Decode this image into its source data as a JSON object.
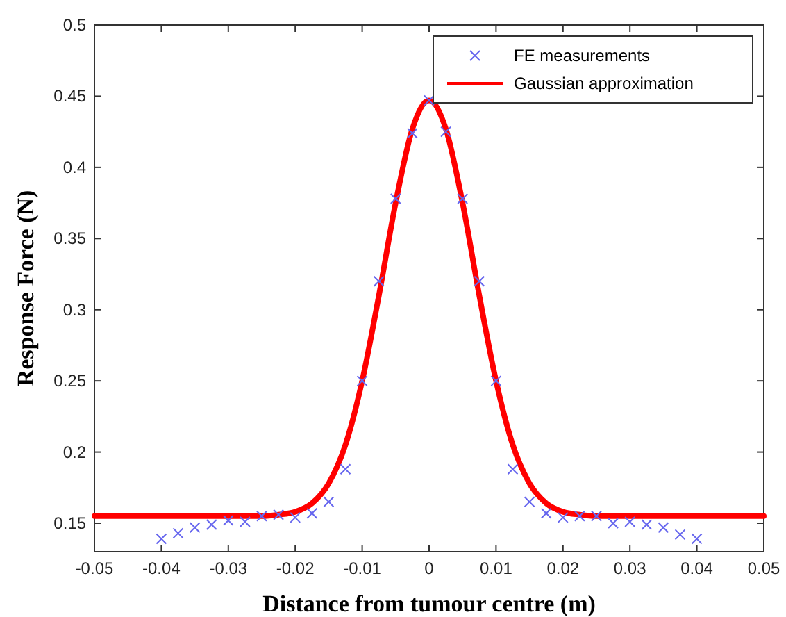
{
  "chart_data": {
    "type": "scatter",
    "xlabel": "Distance from tumour centre (m)",
    "ylabel": "Response Force (N)",
    "xlim": [
      -0.05,
      0.05
    ],
    "ylim": [
      0.13,
      0.5
    ],
    "xticks": [
      -0.05,
      -0.04,
      -0.03,
      -0.02,
      -0.01,
      0,
      0.01,
      0.02,
      0.03,
      0.04,
      0.05
    ],
    "yticks": [
      0.15,
      0.2,
      0.25,
      0.3,
      0.35,
      0.4,
      0.45,
      0.5
    ],
    "grid": false,
    "legend": "top right",
    "series": [
      {
        "name": "FE measurements",
        "marker": "cross",
        "color": "#6666ee",
        "x": [
          -0.04,
          -0.0375,
          -0.035,
          -0.0325,
          -0.03,
          -0.0275,
          -0.025,
          -0.0225,
          -0.02,
          -0.0175,
          -0.015,
          -0.0125,
          -0.01,
          -0.0075,
          -0.005,
          -0.0025,
          0,
          0.0025,
          0.005,
          0.0075,
          0.01,
          0.0125,
          0.015,
          0.0175,
          0.02,
          0.0225,
          0.025,
          0.0275,
          0.03,
          0.0325,
          0.035,
          0.0375,
          0.04
        ],
        "values": [
          0.139,
          0.143,
          0.147,
          0.149,
          0.152,
          0.151,
          0.155,
          0.156,
          0.154,
          0.157,
          0.165,
          0.188,
          0.25,
          0.32,
          0.378,
          0.424,
          0.447,
          0.425,
          0.378,
          0.32,
          0.25,
          0.188,
          0.165,
          0.157,
          0.154,
          0.155,
          0.155,
          0.15,
          0.151,
          0.149,
          0.147,
          0.142,
          0.139
        ]
      },
      {
        "name": "Gaussian approximation",
        "type": "line",
        "marker": "none",
        "line_style": "solid",
        "color": "#ff0000",
        "x": [
          -0.05,
          -0.025,
          -0.0225,
          -0.02,
          -0.0175,
          -0.015,
          -0.0125,
          -0.01,
          -0.0075,
          -0.005,
          -0.0025,
          0,
          0.0025,
          0.005,
          0.0075,
          0.01,
          0.0125,
          0.015,
          0.0175,
          0.02,
          0.0225,
          0.025,
          0.05
        ],
        "values": [
          0.155,
          0.155,
          0.156,
          0.158,
          0.164,
          0.178,
          0.205,
          0.25,
          0.31,
          0.375,
          0.427,
          0.447,
          0.427,
          0.375,
          0.31,
          0.25,
          0.205,
          0.178,
          0.164,
          0.158,
          0.156,
          0.155,
          0.155
        ]
      }
    ]
  }
}
